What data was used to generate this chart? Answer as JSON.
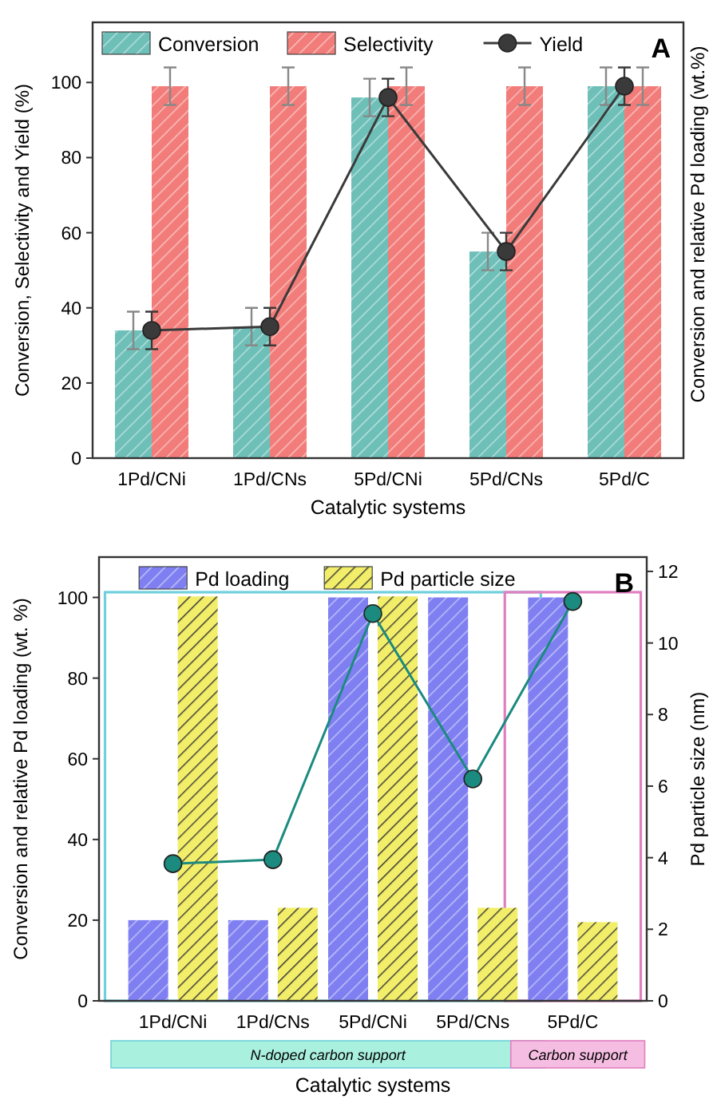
{
  "chart_data": [
    {
      "type": "bar",
      "title": "A",
      "categories": [
        "1Pd/CNi",
        "1Pd/CNs",
        "5Pd/CNi",
        "5Pd/CNs",
        "5Pd/C"
      ],
      "series": [
        {
          "name": "Conversion",
          "color": "#6dbfb8",
          "values": [
            34,
            35,
            96,
            55,
            99
          ],
          "errors": [
            5,
            5,
            5,
            5,
            5
          ]
        },
        {
          "name": "Selectivity",
          "color": "#f27c79",
          "values": [
            99,
            99,
            99,
            99,
            99
          ],
          "errors": [
            5,
            5,
            5,
            5,
            5
          ]
        },
        {
          "name": "Yield",
          "type": "line",
          "color": "#3a3a3a",
          "values": [
            34,
            35,
            96,
            55,
            99
          ],
          "errors": [
            5,
            5,
            5,
            5,
            5
          ]
        }
      ],
      "ylim": [
        0,
        116
      ],
      "yticks": [
        0,
        20,
        40,
        60,
        80,
        100
      ],
      "xlabel": "Catalytic systems",
      "ylabel": "Conversion, Selectivity and Yield (%)",
      "legend": "top left",
      "marker": "circle",
      "grid": false,
      "annotations": [
        "Conversion and relative Pd loading (wt.%)"
      ]
    },
    {
      "type": "bar",
      "title": "B",
      "categories": [
        "1Pd/CNi",
        "1Pd/CNs",
        "5Pd/CNi",
        "5Pd/CNs",
        "5Pd/C"
      ],
      "series": [
        {
          "name": "Pd loading",
          "color": "#7f7ff2",
          "values": [
            20,
            20,
            100,
            100,
            100
          ]
        },
        {
          "name": "Pd particle size",
          "color": "#f2ee6a",
          "values": [
            11.3,
            2.6,
            11.3,
            2.6,
            2.2
          ],
          "axis": "y2"
        },
        {
          "type": "line",
          "color": "#1b8a7f",
          "values": [
            34,
            35,
            96,
            55,
            99
          ]
        }
      ],
      "ylim": [
        0,
        110
      ],
      "yticks": [
        0,
        20,
        40,
        60,
        80,
        100
      ],
      "y2lim": [
        0,
        12.4
      ],
      "y2ticks": [
        0,
        2,
        4,
        6,
        8,
        10,
        12
      ],
      "xlabel": "Catalytic systems",
      "ylabel": "Conversion and relative Pd loading (wt. %)",
      "y2label": "Pd particle size (nm)",
      "legend": "top",
      "marker": "circle",
      "grid": false,
      "annotations": [
        "N-doped carbon support",
        "Carbon support"
      ]
    }
  ]
}
